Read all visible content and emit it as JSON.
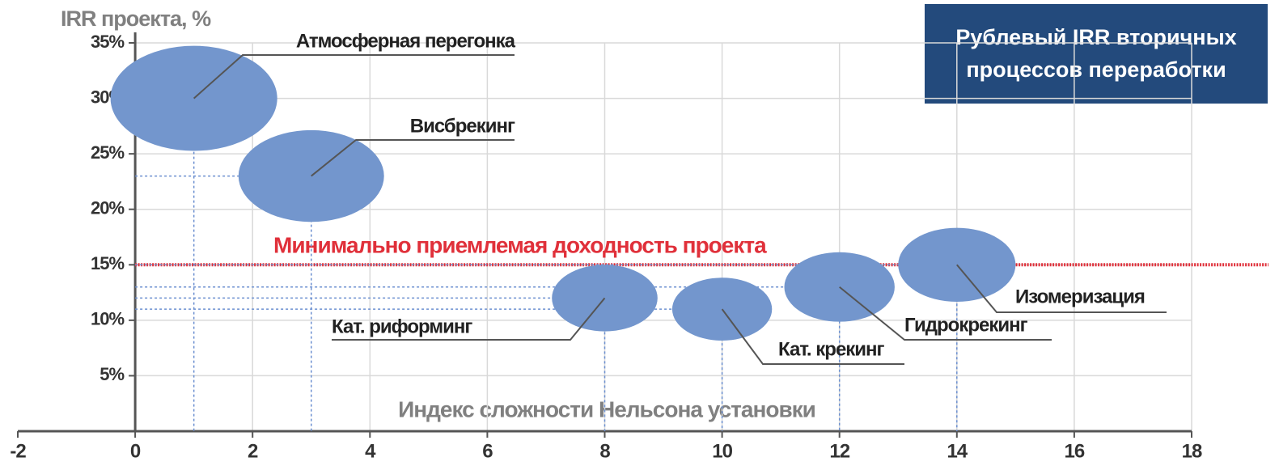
{
  "chart_data": {
    "type": "bubble",
    "title": [
      "Рублевый IRR вторичных",
      "процессов переработки"
    ],
    "x_label": "Индекс сложности Нельсона установки",
    "y_label": "IRR проекта, %",
    "series": [
      {
        "name": null,
        "color": "#7396cd",
        "labels": [
          "Атмосферная перегонка",
          "Висбрекинг",
          "Кат. риформинг",
          "Кат. крекинг",
          "Гидрокрекинг",
          "Изомеризация"
        ],
        "x": [
          1,
          3,
          8,
          10,
          12,
          14
        ],
        "values": [
          30,
          23,
          12,
          11,
          13,
          15
        ],
        "sizes": [
          1.42,
          1.24,
          0.9,
          0.85,
          0.94,
          1.0
        ]
      }
    ],
    "threshold": {
      "value": 15,
      "label": "Минимально приемлемая доходность проекта",
      "color": "#e0303a"
    },
    "xlim": [
      -2,
      18
    ],
    "xticks": [
      -2,
      0,
      2,
      4,
      6,
      8,
      10,
      12,
      14,
      16,
      18
    ],
    "ylim": [
      0,
      35
    ],
    "yticks": [
      {
        "value": 5,
        "label": "5%"
      },
      {
        "value": 10,
        "label": "10%"
      },
      {
        "value": 15,
        "label": "15%"
      },
      {
        "value": 20,
        "label": "20%"
      },
      {
        "value": 25,
        "label": "25%"
      },
      {
        "value": 30,
        "label": "30%"
      },
      {
        "value": 35,
        "label": "35%"
      }
    ],
    "grid": true
  }
}
